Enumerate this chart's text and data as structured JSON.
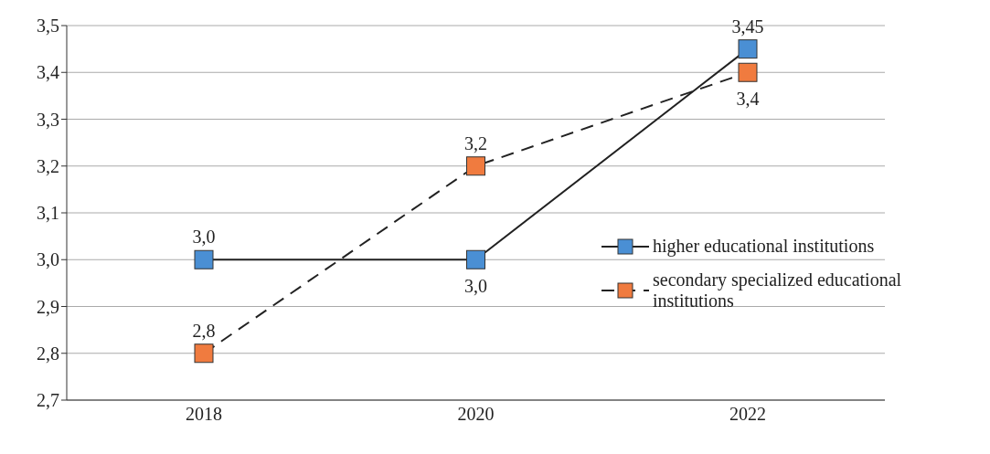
{
  "chart_data": {
    "type": "line",
    "categories": [
      "2018",
      "2020",
      "2022"
    ],
    "series": [
      {
        "name": "higher educational institutions",
        "color": "#4a8fd4",
        "values": [
          3.0,
          3.0,
          3.45
        ],
        "value_labels": [
          "3,0",
          "3,0",
          "3,45"
        ],
        "line_style": "solid"
      },
      {
        "name": "secondary specialized educational institutions",
        "color": "#f07b3f",
        "values": [
          2.8,
          3.2,
          3.4
        ],
        "value_labels": [
          "2,8",
          "3,2",
          "3,4"
        ],
        "line_style": "dashed"
      }
    ],
    "ylim": [
      2.7,
      3.5
    ],
    "yticks": [
      {
        "value": 2.7,
        "label": "2,7"
      },
      {
        "value": 2.8,
        "label": "2,8"
      },
      {
        "value": 2.9,
        "label": "2,9"
      },
      {
        "value": 3.0,
        "label": "3,0"
      },
      {
        "value": 3.1,
        "label": "3,1"
      },
      {
        "value": 3.2,
        "label": "3,2"
      },
      {
        "value": 3.3,
        "label": "3,3"
      },
      {
        "value": 3.4,
        "label": "3,4"
      },
      {
        "value": 3.5,
        "label": "3,5"
      }
    ],
    "grid": "y",
    "legend": "right",
    "marker": "square"
  }
}
